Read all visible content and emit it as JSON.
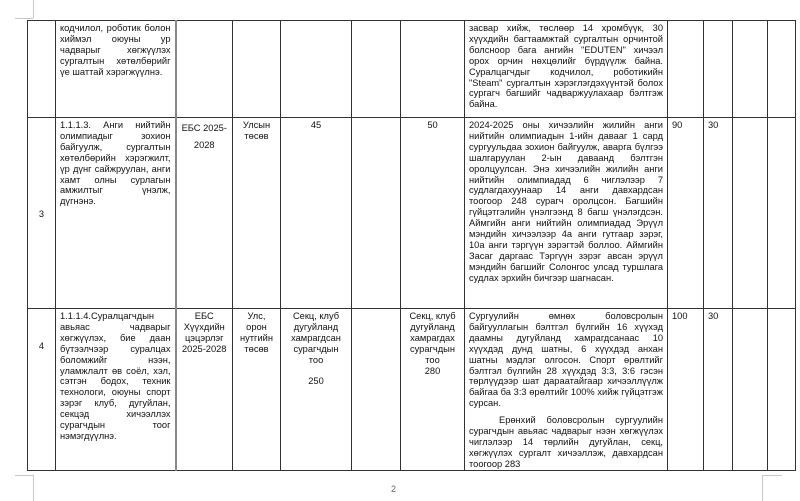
{
  "page_number": "2",
  "rows": [
    {
      "number": "",
      "task": "кодчилол, роботик болон хиймэл оюуны ур чадварыг хөгжүүлэх сургалтын хөтөлбөрийг үе шаттай хэрэгжүүлнэ.",
      "code": "",
      "level": "",
      "baseline": "",
      "col6": "",
      "target": "",
      "description": [
        "засвар хийж, төслөөр 14 хромбүүк, 30 хүүхдийн багтаамжтай сургалтын орчинтой болсноор бага ангийн \"EDUTEN\" хичээл орох орчин нөхцөлийг бүрдүүлж байна. Суралцагчдыг кодчилол, роботикийн \"Steam\" сургалтын хэрэглэгдэхүүнтэй болох сургагч багшийг чадваржуулахаар бэлтгэж байна."
      ],
      "score1": "",
      "score2": ""
    },
    {
      "number": "3",
      "task": "1.1.1.3. Анги нийтийн олимпиадыг зохион байгуулж, сургалтын хөтөлбөрийн хэрэгжилт, үр дүнг сайжруулан, анги хамт олны сурлагын амжилтыг үнэлж, дүгнэнэ.",
      "code": "ЕБС 2025-2028",
      "level": "Улсын төсөв",
      "baseline": "45",
      "col6": "",
      "target": "50",
      "description": [
        "2024-2025 оны хичээлийн жилийн анги нийтийн олимпиадын 1-ийн давааг 1 сард сургуульдаа зохион байгуулж, аварга бүлгээ шалгаруулан 2-ын даваанд бэлтгэн оролцуулсан. Энэ хичээлийн жилийн анги нийтийн олимпиадад 6 чиглэлээр 7 судлагдахуунаар 14 анги давхардсан тоогоор 248 сурагч оролцсон. Багшийн гүйцэтгэлийн үнэлгээнд 8 багш үнэлэгдсэн. Аймгийн анги нийтийн олимпиадад Эрүүл мэндийн хичээлээр 4а анги гутгаар зэрэг, 10а анги тэргүүн зэрэгтэй боллоо. Аймгийн Засаг даргаас Тэргүүн зэрэг авсан эрүүл мэндийн багшийг Солонгос улсад туршлага судлах эрхийн бичгээр шагнасан."
      ],
      "score1": "90",
      "score2": "30"
    },
    {
      "number": "4",
      "task": "1.1.1.4.Суралцагчдын авьяас чадварыг хөгжүүлэх, бие даан бүтээлчээр суралцах боломжийг нээн, уламжлалт өв соёл, хэл, сэтгэн бодох, техник технологи, оюуны спорт зэрэг клуб, дугуйлан, секцэд хичээллэх сурагчдын тоог нэмэгдүүлнэ.",
      "code": "ЕБС Хүүхдийн цэцэрлэг 2025-2028",
      "level": "Улс, орон нутгийн төсөв",
      "baseline": "Секц, клуб дугуйланд хамрагдсан сурагчдын тоо",
      "baseline_value": "250",
      "col6": "",
      "target": "Секц, клуб дугуйланд хамрагдах сурагчдын тоо",
      "target_value": "280",
      "description": [
        "Сургуулийн өмнөх боловсролын байгууллагын бэлтгэл бүлгийн 16 хүүхэд даамны дугуйланд хамрагдсанаас 10 хүүхдэд дунд шатны, 6 хүүхдэд анхан шатны мэдлэг олгосон. Спорт өрөлтийг бэлтгэл бүлгийн 28 хүүхдэд 3:3, 3:6 гэсэн төрлүүдээр шат дараатайгаар хичээллүүлж байгаа ба 3:3 өрөлтийг 100% хийж гүйцэтгэж сурсан.",
        "Ерөнхий боловсролын сургуулийн сурагчдын авьяас чадварыг нээн хөгжүүлэх чиглэлээр 14 төрлийн дугуйлан, секц, хөгжүүлэх сургалт хичээллэж, давхардсан тоогоор 283"
      ],
      "score1": "100",
      "score2": "30"
    }
  ]
}
